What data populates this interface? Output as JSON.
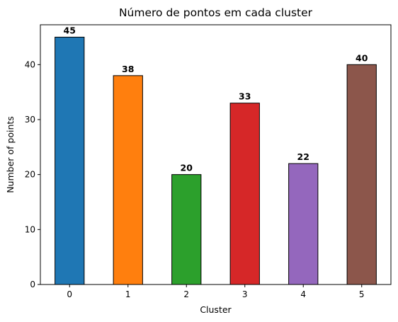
{
  "chart_data": {
    "type": "bar",
    "title": "Número de pontos em cada cluster",
    "xlabel": "Cluster",
    "ylabel": "Number of points",
    "categories": [
      "0",
      "1",
      "2",
      "3",
      "4",
      "5"
    ],
    "values": [
      45,
      38,
      20,
      33,
      22,
      40
    ],
    "colors": [
      "#1f77b4",
      "#ff7f0e",
      "#2ca02c",
      "#d62728",
      "#9467bd",
      "#8c564b"
    ],
    "edge_color": "#000000",
    "ylim": [
      0,
      47.25
    ],
    "yticks": [
      0,
      10,
      20,
      30,
      40
    ],
    "grid": false,
    "show_data_labels": true
  }
}
